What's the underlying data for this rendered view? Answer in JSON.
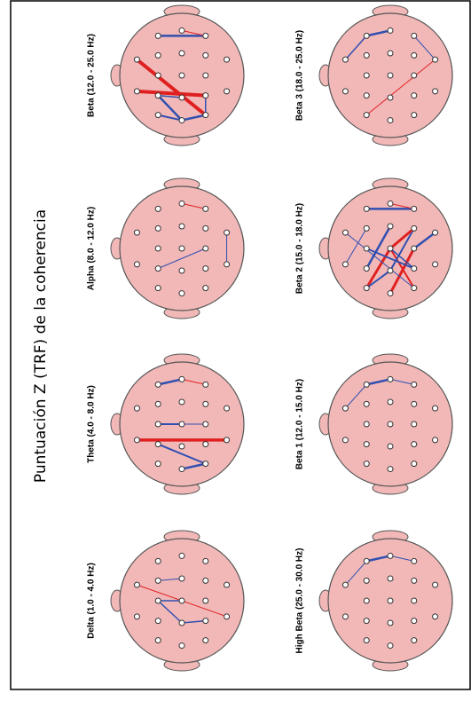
{
  "title": "Puntuación Z (TRF) de la coherencia",
  "panels": [
    {
      "label": "Beta (12.0 - 25.0 Hz)"
    },
    {
      "label": "Beta 3 (18.0 - 25.0 Hz)"
    },
    {
      "label": "Alpha (8.0 - 12.0 Hz)"
    },
    {
      "label": "Beta 2 (15.0 - 18.0 Hz)"
    },
    {
      "label": "Theta (4.0 - 8.0 Hz)"
    },
    {
      "label": "Beta 1 (12.0 - 15.0 Hz)"
    },
    {
      "label": "Delta (1.0 - 4.0 Hz)"
    },
    {
      "label": "High Beta (25.0 - 30.0 Hz)"
    }
  ]
}
